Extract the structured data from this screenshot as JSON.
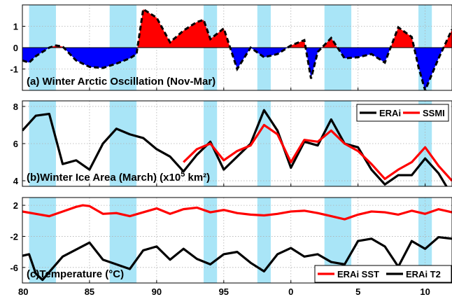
{
  "chart_data": [
    {
      "type": "area",
      "title": "(a) Winter Arctic Oscillation (Nov-Mar)",
      "xlim": [
        80,
        112
      ],
      "ylim": [
        -2,
        2
      ],
      "yticks": [
        -1,
        0,
        1
      ],
      "grid": true,
      "shaded_intervals": [
        [
          80.5,
          82.5
        ],
        [
          86.5,
          88.5
        ],
        [
          93.5,
          94.5
        ],
        [
          97.5,
          98.5
        ],
        [
          102.5,
          104.5
        ],
        [
          109.5,
          110.5
        ]
      ],
      "fill_colors": {
        "positive": "#ff0000",
        "negative": "#0000ff"
      },
      "series": [
        {
          "x": [
            80,
            80.5,
            81,
            81.5,
            82,
            82.5,
            83,
            84,
            85,
            86,
            87,
            88,
            88.5,
            89,
            90,
            91,
            92,
            93,
            93.5,
            94,
            95,
            96,
            97,
            98,
            99,
            100,
            101,
            101.5,
            102,
            103,
            104,
            105,
            106,
            107,
            108,
            109,
            109.5,
            110,
            111,
            112
          ],
          "y": [
            -0.6,
            -0.7,
            -0.4,
            -0.2,
            0.0,
            0.1,
            0.05,
            -0.6,
            -0.9,
            -0.95,
            -0.75,
            -0.5,
            -0.3,
            1.8,
            1.4,
            0.25,
            0.8,
            1.2,
            1.3,
            0.4,
            0.9,
            -1.0,
            0.0,
            -0.45,
            -0.3,
            0.1,
            0.35,
            -1.45,
            -0.2,
            0.45,
            -0.5,
            -0.45,
            -0.3,
            -0.7,
            0.95,
            0.5,
            -0.9,
            -2.0,
            -0.5,
            0.85
          ]
        }
      ]
    },
    {
      "type": "line",
      "title": "(b)Winter Ice Area (March) (x10",
      "title_sup": "5",
      "title_units": " km²)",
      "xlim": [
        80,
        112
      ],
      "ylim": [
        3.7,
        8.3
      ],
      "yticks": [
        4,
        6,
        8
      ],
      "grid": true,
      "legend": "top-right",
      "series": [
        {
          "name": "ERAi",
          "color": "#000000",
          "x": [
            80,
            81,
            82,
            83,
            84,
            85,
            86,
            87,
            88,
            89,
            90,
            91,
            92,
            93,
            94,
            95,
            96,
            97,
            98,
            99,
            100,
            101,
            102,
            103,
            104,
            105,
            106,
            107,
            108,
            109,
            110,
            111,
            112
          ],
          "y": [
            6.7,
            7.5,
            7.6,
            4.9,
            5.1,
            4.6,
            6.0,
            6.8,
            6.5,
            6.3,
            5.7,
            5.3,
            4.5,
            5.4,
            6.1,
            4.6,
            5.3,
            6.0,
            7.8,
            6.7,
            4.7,
            6.1,
            5.9,
            7.3,
            6.0,
            5.8,
            4.6,
            3.8,
            4.3,
            4.3,
            5.2,
            4.4,
            3.2
          ]
        },
        {
          "name": "SSMI",
          "color": "#ff0000",
          "x": [
            92,
            93,
            94,
            95,
            96,
            97,
            98,
            99,
            100,
            101,
            102,
            103,
            104,
            105,
            106,
            107,
            108,
            109,
            110,
            111,
            112
          ],
          "y": [
            5.0,
            5.7,
            6.0,
            5.1,
            5.6,
            5.9,
            7.0,
            6.5,
            5.0,
            6.2,
            6.1,
            6.7,
            6.0,
            5.6,
            4.9,
            4.1,
            4.6,
            5.0,
            5.8,
            4.8,
            4.0
          ]
        }
      ]
    },
    {
      "type": "line",
      "title": "(c)Temperature (°C)",
      "xlabel": "",
      "xlim": [
        80,
        112
      ],
      "ylim": [
        -8,
        3
      ],
      "yticks": [
        2,
        -2,
        -6
      ],
      "xticks": [
        80,
        85,
        90,
        95,
        0,
        5,
        10
      ],
      "grid": true,
      "legend": "bottom-right",
      "series": [
        {
          "name": "ERAi SST",
          "color": "#ff0000",
          "x": [
            80,
            81,
            82,
            83,
            84,
            84.5,
            85,
            86,
            87,
            88,
            89,
            90,
            91,
            92,
            93,
            94,
            95,
            96,
            97,
            98,
            99,
            100,
            101,
            102,
            103,
            104,
            105,
            106,
            107,
            108,
            109,
            110,
            111,
            112
          ],
          "y": [
            1.2,
            0.9,
            0.6,
            1.2,
            1.8,
            2.0,
            1.9,
            0.9,
            1.0,
            0.6,
            1.1,
            1.6,
            0.9,
            1.5,
            1.7,
            1.1,
            1.4,
            1.0,
            0.8,
            0.7,
            0.9,
            1.2,
            1.3,
            1.0,
            0.6,
            0.2,
            0.8,
            1.2,
            1.1,
            0.8,
            1.3,
            0.9,
            1.5,
            1.1
          ]
        },
        {
          "name": "ERAi T2",
          "color": "#000000",
          "x": [
            80,
            80.5,
            81,
            81.5,
            82,
            83,
            84,
            85,
            86,
            87,
            88,
            89,
            90,
            91,
            92,
            93,
            94,
            95,
            96,
            97,
            98,
            99,
            100,
            101,
            102,
            103,
            104,
            105,
            106,
            107,
            108,
            109,
            110,
            111,
            112
          ],
          "y": [
            -4.5,
            -4.3,
            -6.8,
            -7.6,
            -6.6,
            -4.6,
            -3.7,
            -2.8,
            -5.0,
            -5.6,
            -6.2,
            -3.8,
            -3.3,
            -5.0,
            -3.6,
            -4.9,
            -5.6,
            -4.3,
            -4.0,
            -5.4,
            -6.5,
            -4.3,
            -3.5,
            -4.6,
            -4.3,
            -5.3,
            -5.6,
            -2.6,
            -2.3,
            -3.3,
            -5.9,
            -2.6,
            -3.6,
            -2.1,
            -2.3
          ]
        }
      ]
    }
  ]
}
